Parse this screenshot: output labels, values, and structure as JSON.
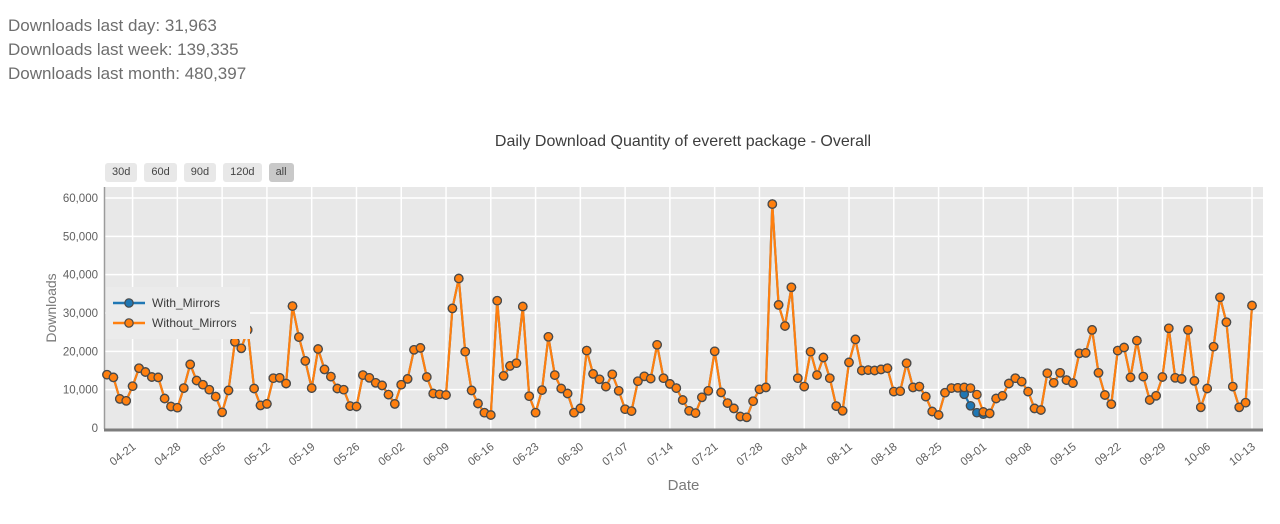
{
  "stats": {
    "last_day": "Downloads last day: 31,963",
    "last_week": "Downloads last week: 139,335",
    "last_month": "Downloads last month: 480,397"
  },
  "chart": {
    "title": "Daily Download Quantity of everett package - Overall",
    "buttons": [
      {
        "label": "30d",
        "active": false
      },
      {
        "label": "60d",
        "active": false
      },
      {
        "label": "90d",
        "active": false
      },
      {
        "label": "120d",
        "active": false
      },
      {
        "label": "all",
        "active": true
      }
    ],
    "legend": [
      {
        "label": "With_Mirrors",
        "color": "#1f77b4"
      },
      {
        "label": "Without_Mirrors",
        "color": "#ff7f0e"
      }
    ],
    "colors": {
      "plot_background": "#e8e8e8",
      "gridline": "#ffffff",
      "axis_line": "#7d7d7d",
      "marker_edge": "#4a4a4a",
      "tick_text": "#606060",
      "axis_label_text": "#7a7a7a"
    }
  },
  "chart_data": {
    "type": "line",
    "title": "Daily Download Quantity of everett package - Overall",
    "xlabel": "Date",
    "ylabel": "Downloads",
    "ylim": [
      0,
      60000
    ],
    "yticks": [
      0,
      10000,
      20000,
      30000,
      40000,
      50000,
      60000
    ],
    "grid": true,
    "legend_position": "upper-left-inside",
    "x_start_date": "04-17",
    "x_tick_labels": [
      "04-21",
      "04-28",
      "05-05",
      "05-12",
      "05-19",
      "05-26",
      "06-02",
      "06-09",
      "06-16",
      "06-23",
      "06-30",
      "07-07",
      "07-14",
      "07-21",
      "07-28",
      "08-04",
      "08-11",
      "08-18",
      "08-25",
      "09-01",
      "09-08",
      "09-15",
      "09-22",
      "09-29",
      "10-06",
      "10-13"
    ],
    "first_tick_day_index": 4,
    "tick_interval_days": 7,
    "n_points": 180,
    "series": [
      {
        "name": "With_Mirrors",
        "color": "#1f77b4",
        "values_same_as": "Without_Mirrors",
        "value_overrides": {
          "134": 8800,
          "135": 5800,
          "136": 4000,
          "137": 3600
        }
      },
      {
        "name": "Without_Mirrors",
        "color": "#ff7f0e",
        "values": [
          13900,
          13200,
          7600,
          7100,
          10900,
          15600,
          14600,
          13300,
          13200,
          7700,
          5600,
          5300,
          10400,
          16600,
          12400,
          11300,
          10000,
          8200,
          4100,
          9800,
          22500,
          20800,
          25600,
          10300,
          5900,
          6300,
          13000,
          13100,
          11600,
          31800,
          23700,
          17500,
          10400,
          20600,
          15300,
          13400,
          10300,
          10000,
          5700,
          5600,
          13800,
          13100,
          11800,
          11100,
          8700,
          6300,
          11300,
          12800,
          20400,
          20900,
          13300,
          9000,
          8800,
          8600,
          31200,
          39000,
          19900,
          9800,
          6400,
          4000,
          3400,
          33200,
          13600,
          16200,
          16900,
          31700,
          8300,
          4000,
          9900,
          23800,
          13800,
          10300,
          9000,
          4000,
          5100,
          20200,
          14100,
          12700,
          10800,
          14000,
          9700,
          4900,
          4400,
          12200,
          13500,
          12900,
          21700,
          13000,
          11500,
          10400,
          7300,
          4500,
          3900,
          8000,
          9700,
          20000,
          9300,
          6500,
          5100,
          3000,
          2800,
          7000,
          10100,
          10600,
          58400,
          32100,
          26600,
          36700,
          13000,
          10800,
          19900,
          13800,
          18400,
          13000,
          5700,
          4500,
          17100,
          23100,
          15000,
          15100,
          15000,
          15300,
          15600,
          9500,
          9600,
          16900,
          10600,
          10800,
          8200,
          4300,
          3400,
          9200,
          10400,
          10500,
          10600,
          10400,
          8700,
          4200,
          3800,
          7700,
          8400,
          11600,
          13000,
          12100,
          9500,
          5100,
          4700,
          14300,
          11800,
          14400,
          12500,
          11700,
          19500,
          19600,
          25600,
          14400,
          8600,
          6200,
          20200,
          21000,
          13200,
          22800,
          13400,
          7300,
          8400,
          13300,
          26000,
          13100,
          12800,
          25600,
          12300,
          5400,
          10300,
          21200,
          34100,
          27600,
          10800,
          5400,
          6600,
          31963
        ]
      }
    ]
  }
}
